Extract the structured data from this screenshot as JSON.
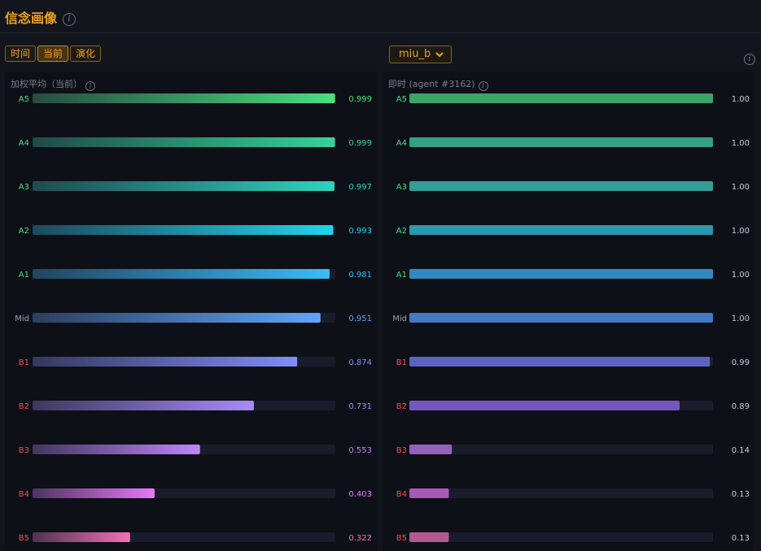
{
  "header": {
    "title": "信念画像",
    "info_icon": "info-icon"
  },
  "tabs": [
    {
      "label": "时间",
      "active": false
    },
    {
      "label": "当前",
      "active": true
    },
    {
      "label": "演化",
      "active": false
    }
  ],
  "agent_select": {
    "value": "miu_b"
  },
  "chart_data": [
    {
      "type": "bar",
      "orientation": "horizontal",
      "title": "加权平均（当前）",
      "categories": [
        "A5",
        "A4",
        "A3",
        "A2",
        "A1",
        "Mid",
        "B1",
        "B2",
        "B3",
        "B4",
        "B5"
      ],
      "values": [
        0.999,
        0.999,
        0.997,
        0.993,
        0.981,
        0.951,
        0.874,
        0.731,
        0.553,
        0.403,
        0.322
      ],
      "value_labels": [
        "0.999",
        "0.999",
        "0.997",
        "0.993",
        "0.981",
        "0.951",
        "0.874",
        "0.731",
        "0.553",
        "0.403",
        "0.322"
      ],
      "xlim": [
        0,
        1
      ],
      "gradient_bars": true,
      "colors": [
        "#4ade80",
        "#34d399",
        "#2dd4bf",
        "#22d3ee",
        "#38bdf8",
        "#60a5fa",
        "#818cf8",
        "#a78bfa",
        "#c084fc",
        "#e879f9",
        "#f472b6"
      ],
      "label_colors": [
        "#4ade80",
        "#4ade80",
        "#4ade80",
        "#4ade80",
        "#4ade80",
        "#9aa0aa",
        "#f05050",
        "#f05050",
        "#f05050",
        "#f05050",
        "#f05050"
      ]
    },
    {
      "type": "bar",
      "orientation": "horizontal",
      "title": "即时 (agent #3162)",
      "categories": [
        "A5",
        "A4",
        "A3",
        "A2",
        "A1",
        "Mid",
        "B1",
        "B2",
        "B3",
        "B4",
        "B5"
      ],
      "values": [
        1.0,
        1.0,
        1.0,
        1.0,
        1.0,
        1.0,
        0.99,
        0.89,
        0.14,
        0.13,
        0.13
      ],
      "value_labels": [
        "1.00",
        "1.00",
        "1.00",
        "1.00",
        "1.00",
        "1.00",
        "0.99",
        "0.89",
        "0.14",
        "0.13",
        "0.13"
      ],
      "xlim": [
        0,
        1
      ],
      "gradient_bars": false,
      "colors": [
        "#3aa567",
        "#34a184",
        "#2f9e96",
        "#2a98ad",
        "#3288c0",
        "#4479c4",
        "#5b63c2",
        "#7556be",
        "#9660bd",
        "#a858b9",
        "#b05a8f"
      ],
      "label_colors": [
        "#4ade80",
        "#4ade80",
        "#4ade80",
        "#4ade80",
        "#4ade80",
        "#9aa0aa",
        "#f05050",
        "#f05050",
        "#f05050",
        "#f05050",
        "#f05050"
      ]
    }
  ]
}
